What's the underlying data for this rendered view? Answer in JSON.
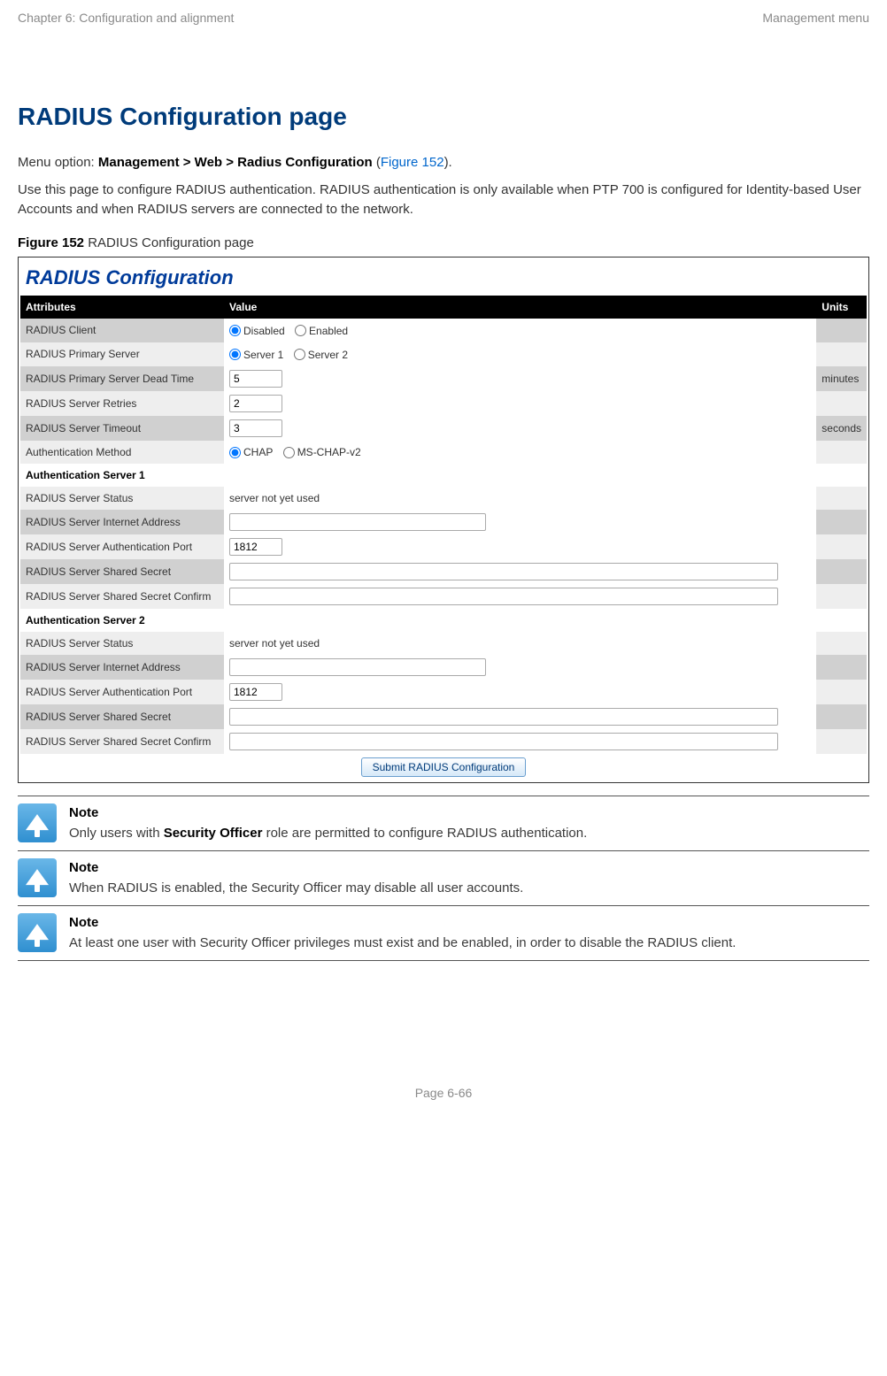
{
  "header": {
    "left": "Chapter 6:  Configuration and alignment",
    "right": "Management menu"
  },
  "title": "RADIUS Configuration page",
  "intro": {
    "menu_prefix": "Menu option: ",
    "menu_path": "Management > Web > Radius Configuration",
    "menu_suffix_open": " (",
    "menu_figref": "Figure 152",
    "menu_suffix_close": ").",
    "desc": "Use this page to configure RADIUS authentication. RADIUS authentication is only available when PTP 700 is configured for Identity-based User Accounts and when RADIUS servers are connected to the network."
  },
  "figcap": {
    "label": "Figure 152",
    "text": "  RADIUS Configuration page"
  },
  "config": {
    "title": "RADIUS Configuration",
    "headers": {
      "attr": "Attributes",
      "val": "Value",
      "units": "Units"
    },
    "rows": {
      "client": {
        "label": "RADIUS Client",
        "opt1": "Disabled",
        "opt2": "Enabled"
      },
      "primary": {
        "label": "RADIUS Primary Server",
        "opt1": "Server 1",
        "opt2": "Server 2"
      },
      "dead": {
        "label": "RADIUS Primary Server Dead Time",
        "val": "5",
        "unit": "minutes"
      },
      "retries": {
        "label": "RADIUS Server Retries",
        "val": "2"
      },
      "timeout": {
        "label": "RADIUS Server Timeout",
        "val": "3",
        "unit": "seconds"
      },
      "auth": {
        "label": "Authentication Method",
        "opt1": "CHAP",
        "opt2": "MS-CHAP-v2"
      },
      "sec1": {
        "label": "Authentication Server 1"
      },
      "s1_status": {
        "label": "RADIUS Server Status",
        "val": "server not yet used"
      },
      "s1_addr": {
        "label": "RADIUS Server Internet Address"
      },
      "s1_port": {
        "label": "RADIUS Server Authentication Port",
        "val": "1812"
      },
      "s1_sec": {
        "label": "RADIUS Server Shared Secret"
      },
      "s1_secc": {
        "label": "RADIUS Server Shared Secret Confirm"
      },
      "sec2": {
        "label": "Authentication Server 2"
      },
      "s2_status": {
        "label": "RADIUS Server Status",
        "val": "server not yet used"
      },
      "s2_addr": {
        "label": "RADIUS Server Internet Address"
      },
      "s2_port": {
        "label": "RADIUS Server Authentication Port",
        "val": "1812"
      },
      "s2_sec": {
        "label": "RADIUS Server Shared Secret"
      },
      "s2_secc": {
        "label": "RADIUS Server Shared Secret Confirm"
      }
    },
    "submit": "Submit RADIUS Configuration"
  },
  "notes": {
    "n1": {
      "title": "Note",
      "body_pre": "Only users with ",
      "body_bold": "Security Officer",
      "body_post": " role are permitted to configure RADIUS authentication."
    },
    "n2": {
      "title": "Note",
      "body": "When RADIUS is enabled, the Security Officer may disable all user accounts."
    },
    "n3": {
      "title": "Note",
      "body": "At least one user with Security Officer privileges must exist and be enabled, in order to disable the RADIUS client."
    }
  },
  "footer": "Page 6-66"
}
